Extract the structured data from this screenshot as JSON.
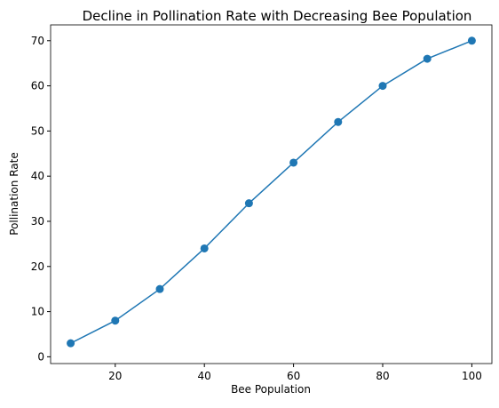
{
  "chart_data": {
    "type": "line",
    "title": "Decline in Pollination Rate with Decreasing Bee Population",
    "x_label": "Bee Population",
    "y_label": "Pollination Rate",
    "x": [
      10,
      20,
      30,
      40,
      50,
      60,
      70,
      80,
      90,
      100
    ],
    "series": [
      {
        "name": "Pollination Rate",
        "color": "#1f77b4",
        "values": [
          3,
          8,
          15,
          24,
          34,
          43,
          52,
          60,
          66,
          70
        ]
      }
    ],
    "xlim": [
      5.5,
      104.5
    ],
    "xticks": [
      20,
      40,
      60,
      80,
      100
    ],
    "ylim": [
      -1.5,
      73.5
    ],
    "yticks": [
      0,
      10,
      20,
      30,
      40,
      50,
      60,
      70
    ]
  }
}
